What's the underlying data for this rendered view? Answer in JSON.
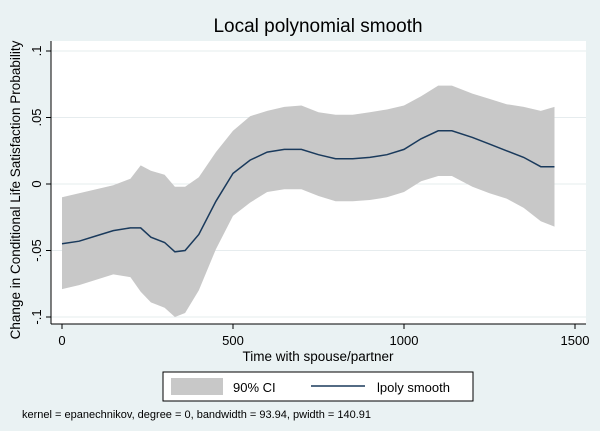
{
  "chart_data": {
    "type": "line",
    "title": "Local polynomial smooth",
    "xlabel": "Time with spouse/partner",
    "ylabel": "Change in Conditional Life Satisfaction Probability",
    "xlim": [
      0,
      1500
    ],
    "ylim": [
      -0.1,
      0.1
    ],
    "x_ticks": [
      0,
      500,
      1000,
      1500
    ],
    "x_tick_labels": [
      "0",
      "500",
      "1000",
      "1500"
    ],
    "y_ticks": [
      -0.1,
      -0.05,
      0,
      0.05,
      0.1
    ],
    "y_tick_labels": [
      "-.1",
      "-.05",
      "0",
      ".05",
      ".1"
    ],
    "grid": true,
    "legend_position": "bottom",
    "note": "kernel = epanechnikov, degree = 0, bandwidth = 93.94, pwidth = 140.91",
    "series": [
      {
        "name": "lpoly smooth",
        "color": "#1a3a5c",
        "x": [
          0,
          50,
          100,
          150,
          200,
          230,
          260,
          300,
          330,
          360,
          400,
          450,
          500,
          550,
          600,
          650,
          700,
          750,
          800,
          850,
          900,
          950,
          1000,
          1050,
          1100,
          1140,
          1200,
          1250,
          1300,
          1350,
          1400,
          1440
        ],
        "y": [
          -0.045,
          -0.043,
          -0.039,
          -0.035,
          -0.033,
          -0.033,
          -0.04,
          -0.044,
          -0.051,
          -0.05,
          -0.038,
          -0.013,
          0.008,
          0.018,
          0.024,
          0.026,
          0.026,
          0.022,
          0.019,
          0.019,
          0.02,
          0.022,
          0.026,
          0.034,
          0.04,
          0.04,
          0.035,
          0.03,
          0.025,
          0.02,
          0.013,
          0.013
        ]
      },
      {
        "name": "90% CI",
        "color": "#c8c8c8",
        "x": [
          0,
          50,
          100,
          150,
          200,
          230,
          260,
          300,
          330,
          360,
          400,
          450,
          500,
          550,
          600,
          650,
          700,
          750,
          800,
          850,
          900,
          950,
          1000,
          1050,
          1100,
          1140,
          1200,
          1250,
          1300,
          1350,
          1400,
          1440
        ],
        "upper": [
          -0.01,
          -0.007,
          -0.004,
          -0.001,
          0.004,
          0.014,
          0.01,
          0.007,
          -0.002,
          -0.002,
          0.005,
          0.024,
          0.04,
          0.051,
          0.055,
          0.058,
          0.059,
          0.054,
          0.052,
          0.052,
          0.054,
          0.056,
          0.059,
          0.066,
          0.074,
          0.074,
          0.068,
          0.064,
          0.06,
          0.058,
          0.055,
          0.058
        ],
        "lower": [
          -0.079,
          -0.076,
          -0.072,
          -0.068,
          -0.07,
          -0.081,
          -0.089,
          -0.093,
          -0.1,
          -0.097,
          -0.08,
          -0.049,
          -0.024,
          -0.014,
          -0.006,
          -0.004,
          -0.004,
          -0.009,
          -0.013,
          -0.013,
          -0.012,
          -0.01,
          -0.006,
          0.002,
          0.006,
          0.006,
          -0.002,
          -0.007,
          -0.011,
          -0.018,
          -0.028,
          -0.032
        ]
      }
    ]
  }
}
